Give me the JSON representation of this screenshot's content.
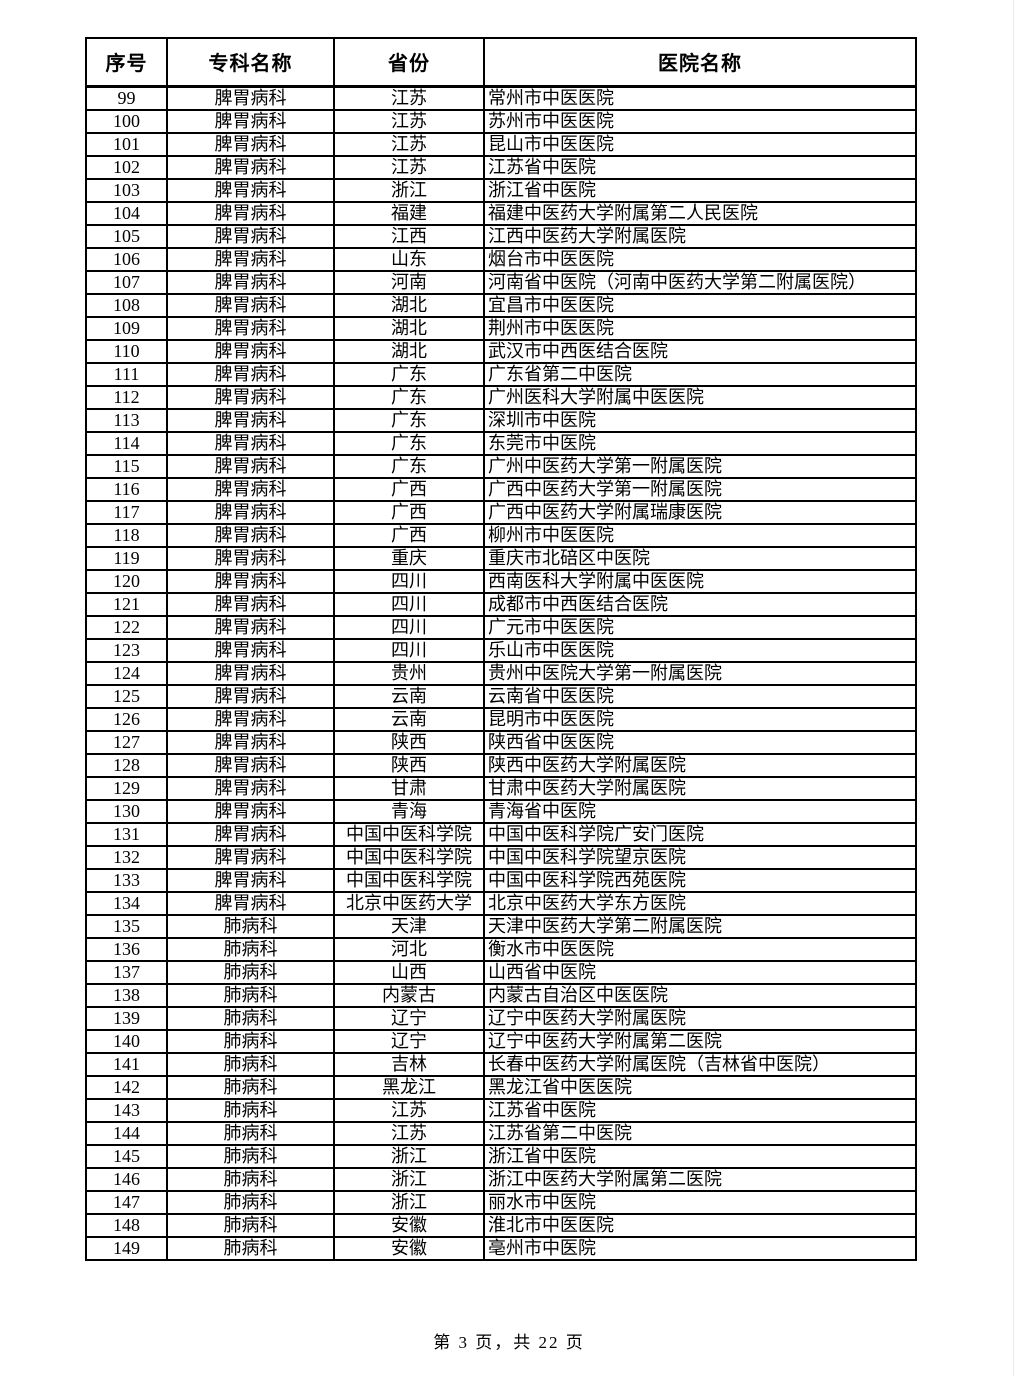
{
  "table": {
    "headers": [
      "序号",
      "专科名称",
      "省份",
      "医院名称"
    ],
    "rows": [
      [
        "99",
        "脾胃病科",
        "江苏",
        "常州市中医医院"
      ],
      [
        "100",
        "脾胃病科",
        "江苏",
        "苏州市中医医院"
      ],
      [
        "101",
        "脾胃病科",
        "江苏",
        "昆山市中医医院"
      ],
      [
        "102",
        "脾胃病科",
        "江苏",
        "江苏省中医院"
      ],
      [
        "103",
        "脾胃病科",
        "浙江",
        "浙江省中医院"
      ],
      [
        "104",
        "脾胃病科",
        "福建",
        "福建中医药大学附属第二人民医院"
      ],
      [
        "105",
        "脾胃病科",
        "江西",
        "江西中医药大学附属医院"
      ],
      [
        "106",
        "脾胃病科",
        "山东",
        "烟台市中医医院"
      ],
      [
        "107",
        "脾胃病科",
        "河南",
        "河南省中医院（河南中医药大学第二附属医院）"
      ],
      [
        "108",
        "脾胃病科",
        "湖北",
        "宜昌市中医医院"
      ],
      [
        "109",
        "脾胃病科",
        "湖北",
        "荆州市中医医院"
      ],
      [
        "110",
        "脾胃病科",
        "湖北",
        "武汉市中西医结合医院"
      ],
      [
        "111",
        "脾胃病科",
        "广东",
        "广东省第二中医院"
      ],
      [
        "112",
        "脾胃病科",
        "广东",
        "广州医科大学附属中医医院"
      ],
      [
        "113",
        "脾胃病科",
        "广东",
        "深圳市中医院"
      ],
      [
        "114",
        "脾胃病科",
        "广东",
        "东莞市中医院"
      ],
      [
        "115",
        "脾胃病科",
        "广东",
        "广州中医药大学第一附属医院"
      ],
      [
        "116",
        "脾胃病科",
        "广西",
        "广西中医药大学第一附属医院"
      ],
      [
        "117",
        "脾胃病科",
        "广西",
        "广西中医药大学附属瑞康医院"
      ],
      [
        "118",
        "脾胃病科",
        "广西",
        "柳州市中医医院"
      ],
      [
        "119",
        "脾胃病科",
        "重庆",
        "重庆市北碚区中医院"
      ],
      [
        "120",
        "脾胃病科",
        "四川",
        "西南医科大学附属中医医院"
      ],
      [
        "121",
        "脾胃病科",
        "四川",
        "成都市中西医结合医院"
      ],
      [
        "122",
        "脾胃病科",
        "四川",
        "广元市中医医院"
      ],
      [
        "123",
        "脾胃病科",
        "四川",
        "乐山市中医医院"
      ],
      [
        "124",
        "脾胃病科",
        "贵州",
        "贵州中医院大学第一附属医院"
      ],
      [
        "125",
        "脾胃病科",
        "云南",
        "云南省中医医院"
      ],
      [
        "126",
        "脾胃病科",
        "云南",
        "昆明市中医医院"
      ],
      [
        "127",
        "脾胃病科",
        "陕西",
        "陕西省中医医院"
      ],
      [
        "128",
        "脾胃病科",
        "陕西",
        "陕西中医药大学附属医院"
      ],
      [
        "129",
        "脾胃病科",
        "甘肃",
        "甘肃中医药大学附属医院"
      ],
      [
        "130",
        "脾胃病科",
        "青海",
        "青海省中医院"
      ],
      [
        "131",
        "脾胃病科",
        "中国中医科学院",
        "中国中医科学院广安门医院"
      ],
      [
        "132",
        "脾胃病科",
        "中国中医科学院",
        "中国中医科学院望京医院"
      ],
      [
        "133",
        "脾胃病科",
        "中国中医科学院",
        "中国中医科学院西苑医院"
      ],
      [
        "134",
        "脾胃病科",
        "北京中医药大学",
        "北京中医药大学东方医院"
      ],
      [
        "135",
        "肺病科",
        "天津",
        "天津中医药大学第二附属医院"
      ],
      [
        "136",
        "肺病科",
        "河北",
        "衡水市中医医院"
      ],
      [
        "137",
        "肺病科",
        "山西",
        "山西省中医院"
      ],
      [
        "138",
        "肺病科",
        "内蒙古",
        "内蒙古自治区中医医院"
      ],
      [
        "139",
        "肺病科",
        "辽宁",
        "辽宁中医药大学附属医院"
      ],
      [
        "140",
        "肺病科",
        "辽宁",
        "辽宁中医药大学附属第二医院"
      ],
      [
        "141",
        "肺病科",
        "吉林",
        "长春中医药大学附属医院（吉林省中医院）"
      ],
      [
        "142",
        "肺病科",
        "黑龙江",
        "黑龙江省中医医院"
      ],
      [
        "143",
        "肺病科",
        "江苏",
        "江苏省中医院"
      ],
      [
        "144",
        "肺病科",
        "江苏",
        "江苏省第二中医院"
      ],
      [
        "145",
        "肺病科",
        "浙江",
        "浙江省中医院"
      ],
      [
        "146",
        "肺病科",
        "浙江",
        "浙江中医药大学附属第二医院"
      ],
      [
        "147",
        "肺病科",
        "浙江",
        "丽水市中医院"
      ],
      [
        "148",
        "肺病科",
        "安徽",
        "淮北市中医医院"
      ],
      [
        "149",
        "肺病科",
        "安徽",
        "亳州市中医院"
      ]
    ]
  },
  "footer": {
    "page_text": "第 3 页，共 22 页"
  }
}
